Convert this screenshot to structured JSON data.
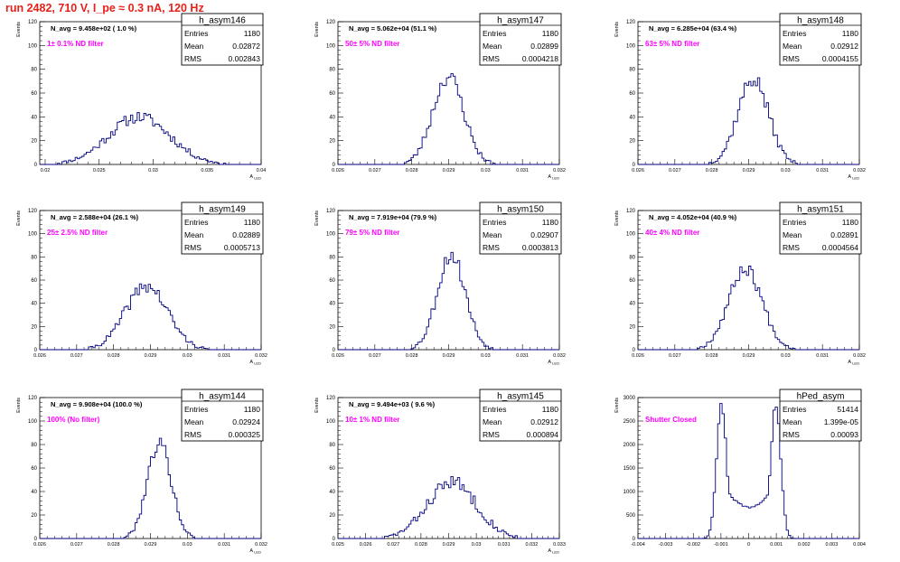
{
  "title": "run 2482,   710 V, I_pe ≈ 0.3 nA, 120 Hz",
  "stat_labels": {
    "entries": "Entries",
    "mean": "Mean",
    "rms": "RMS"
  },
  "colors": {
    "title": "#e8201a",
    "histogram": "#000080",
    "annotation": "#ff00ff",
    "axes": "#000000",
    "frame": "#000000"
  },
  "chart_data": [
    {
      "type": "histogram",
      "name": "h_asym146",
      "stats": {
        "entries": "1180",
        "mean": "0.02872",
        "rms": "0.002843"
      },
      "n_avg": "N_avg = 9.458e+02 ( 1.0 %)",
      "filter_label": "1± 0.1% ND filter",
      "ylabel": "Events",
      "xlabel": "A_LED",
      "xlim": [
        0.0195,
        0.04
      ],
      "ylim": [
        0,
        120
      ],
      "xticks": [
        "0.02",
        "0.025",
        "0.03",
        "0.035",
        "0.04"
      ],
      "yticks": [
        "0",
        "20",
        "40",
        "60",
        "80",
        "100",
        "120"
      ],
      "dist": {
        "center": 0.0287,
        "sigma": 0.00284,
        "peak": 40,
        "jitter": 5,
        "seed": 11
      }
    },
    {
      "type": "histogram",
      "name": "h_asym147",
      "stats": {
        "entries": "1180",
        "mean": "0.02899",
        "rms": "0.0004218"
      },
      "n_avg": "N_avg = 5.062e+04 (51.1 %)",
      "filter_label": "50± 5% ND filter",
      "ylabel": "Events",
      "xlabel": "A_LED",
      "xlim": [
        0.026,
        0.032
      ],
      "ylim": [
        0,
        120
      ],
      "xticks": [
        "0.026",
        "0.027",
        "0.028",
        "0.029",
        "0.03",
        "0.031",
        "0.032"
      ],
      "yticks": [
        "0",
        "20",
        "40",
        "60",
        "80",
        "100",
        "120"
      ],
      "dist": {
        "center": 0.02899,
        "sigma": 0.00042,
        "peak": 74,
        "jitter": 7,
        "seed": 23
      }
    },
    {
      "type": "histogram",
      "name": "h_asym148",
      "stats": {
        "entries": "1180",
        "mean": "0.02912",
        "rms": "0.0004155"
      },
      "n_avg": "N_avg = 6.285e+04 (63.4 %)",
      "filter_label": "63± 5% ND filter",
      "ylabel": "Events",
      "xlabel": "A_LED",
      "xlim": [
        0.026,
        0.032
      ],
      "ylim": [
        0,
        120
      ],
      "xticks": [
        "0.026",
        "0.027",
        "0.028",
        "0.029",
        "0.03",
        "0.031",
        "0.032"
      ],
      "yticks": [
        "0",
        "20",
        "40",
        "60",
        "80",
        "100",
        "120"
      ],
      "dist": {
        "center": 0.02912,
        "sigma": 0.000415,
        "peak": 72,
        "jitter": 7,
        "seed": 37
      }
    },
    {
      "type": "histogram",
      "name": "h_asym149",
      "stats": {
        "entries": "1180",
        "mean": "0.02889",
        "rms": "0.0005713"
      },
      "n_avg": "N_avg = 2.588e+04 (26.1 %)",
      "filter_label": "25± 2.5% ND filter",
      "ylabel": "Events",
      "xlabel": "A_LED",
      "xlim": [
        0.026,
        0.032
      ],
      "ylim": [
        0,
        120
      ],
      "xticks": [
        "0.026",
        "0.027",
        "0.028",
        "0.029",
        "0.03",
        "0.031",
        "0.032"
      ],
      "yticks": [
        "0",
        "20",
        "40",
        "60",
        "80",
        "100",
        "120"
      ],
      "dist": {
        "center": 0.02889,
        "sigma": 0.00057,
        "peak": 55,
        "jitter": 6,
        "seed": 41
      }
    },
    {
      "type": "histogram",
      "name": "h_asym150",
      "stats": {
        "entries": "1180",
        "mean": "0.02907",
        "rms": "0.0003813"
      },
      "n_avg": "N_avg = 7.919e+04 (79.9 %)",
      "filter_label": "79± 5% ND filter",
      "ylabel": "Events",
      "xlabel": "A_LED",
      "xlim": [
        0.026,
        0.032
      ],
      "ylim": [
        0,
        120
      ],
      "xticks": [
        "0.026",
        "0.027",
        "0.028",
        "0.029",
        "0.03",
        "0.031",
        "0.032"
      ],
      "yticks": [
        "0",
        "20",
        "40",
        "60",
        "80",
        "100",
        "120"
      ],
      "dist": {
        "center": 0.02907,
        "sigma": 0.00038,
        "peak": 82,
        "jitter": 7,
        "seed": 53
      }
    },
    {
      "type": "histogram",
      "name": "h_asym151",
      "stats": {
        "entries": "1180",
        "mean": "0.02891",
        "rms": "0.0004564"
      },
      "n_avg": "N_avg = 4.052e+04 (40.9 %)",
      "filter_label": "40± 4% ND filter",
      "ylabel": "Events",
      "xlabel": "A_LED",
      "xlim": [
        0.026,
        0.032
      ],
      "ylim": [
        0,
        120
      ],
      "xticks": [
        "0.026",
        "0.027",
        "0.028",
        "0.029",
        "0.03",
        "0.031",
        "0.032"
      ],
      "yticks": [
        "0",
        "20",
        "40",
        "60",
        "80",
        "100",
        "120"
      ],
      "dist": {
        "center": 0.02891,
        "sigma": 0.000456,
        "peak": 70,
        "jitter": 6,
        "seed": 67
      }
    },
    {
      "type": "histogram",
      "name": "h_asym144",
      "stats": {
        "entries": "1180",
        "mean": "0.02924",
        "rms": "0.000325"
      },
      "n_avg": "N_avg = 9.908e+04 (100.0 %)",
      "filter_label": "100% (No filter)",
      "ylabel": "Events",
      "xlabel": "A_LED",
      "xlim": [
        0.026,
        0.032
      ],
      "ylim": [
        0,
        120
      ],
      "xticks": [
        "0.026",
        "0.027",
        "0.028",
        "0.029",
        "0.03",
        "0.031",
        "0.032"
      ],
      "yticks": [
        "0",
        "20",
        "40",
        "60",
        "80",
        "100",
        "120"
      ],
      "dist": {
        "center": 0.02924,
        "sigma": 0.000325,
        "peak": 82,
        "jitter": 6,
        "seed": 79
      }
    },
    {
      "type": "histogram",
      "name": "h_asym145",
      "stats": {
        "entries": "1180",
        "mean": "0.02912",
        "rms": "0.000894"
      },
      "n_avg": "N_avg = 9.494e+03 ( 9.6 %)",
      "filter_label": "10± 1% ND filter",
      "ylabel": "Events",
      "xlabel": "A_LED",
      "xlim": [
        0.025,
        0.033
      ],
      "ylim": [
        0,
        120
      ],
      "xticks": [
        "0.025",
        "0.026",
        "0.027",
        "0.028",
        "0.029",
        "0.03",
        "0.031",
        "0.032",
        "0.033"
      ],
      "yticks": [
        "0",
        "20",
        "40",
        "60",
        "80",
        "100",
        "120"
      ],
      "dist": {
        "center": 0.02912,
        "sigma": 0.00089,
        "peak": 48,
        "jitter": 6,
        "seed": 83
      }
    },
    {
      "type": "histogram",
      "name": "hPed_asym",
      "stats": {
        "entries": "51414",
        "mean": "1.399e-05",
        "rms": "0.00093"
      },
      "n_avg": "",
      "filter_label": "Shutter Closed",
      "ylabel": "Events",
      "xlabel": "",
      "xlim": [
        -0.004,
        0.004
      ],
      "ylim": [
        0,
        3000
      ],
      "xticks": [
        "-0.004",
        "-0.003",
        "-0.002",
        "-0.001",
        "0",
        "0.001",
        "0.002",
        "0.003",
        "0.004"
      ],
      "yticks": [
        "0",
        "500",
        "1000",
        "1500",
        "2000",
        "2500",
        "3000"
      ],
      "dist": {
        "bimodal": true,
        "centers": [
          -0.00098,
          0.00098
        ],
        "sigma": 0.00018,
        "peak": 2850,
        "valley": 670,
        "jitter": 60,
        "seed": 97
      }
    }
  ]
}
